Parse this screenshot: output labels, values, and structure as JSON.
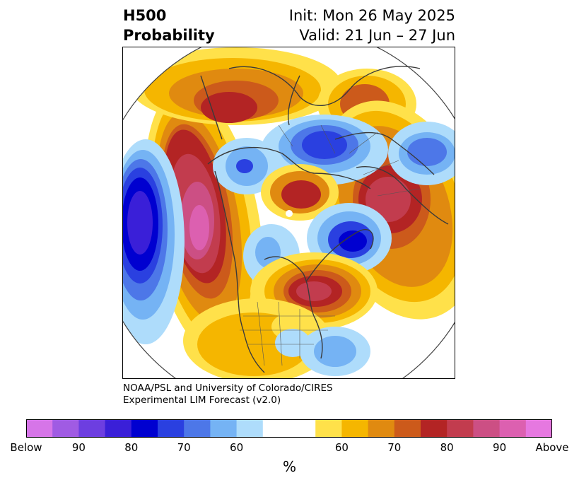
{
  "header": {
    "variable": "H500",
    "product": "Probability",
    "init": "Init: Mon 26 May 2025",
    "valid": "Valid: 21 Jun – 27 Jun"
  },
  "credit": {
    "line1": "NOAA/PSL and University of Colorado/CIRES",
    "line2": "Experimental LIM Forecast (v2.0)"
  },
  "colorbar": {
    "unit": "%",
    "colors": [
      "#d675e8",
      "#a05be3",
      "#6d3ee0",
      "#3a1fd8",
      "#0000d0",
      "#2a40e0",
      "#4d77e8",
      "#75b3f4",
      "#aedcfb",
      "#ffffff",
      "#ffffff",
      "#ffe14a",
      "#f5b600",
      "#e08a10",
      "#cc5a1b",
      "#b32424",
      "#c23c4e",
      "#cc4f84",
      "#dc60b0",
      "#e678e0"
    ],
    "tick_labels": [
      "Below",
      "90",
      "80",
      "70",
      "60",
      "60",
      "70",
      "80",
      "90",
      "Above"
    ]
  }
}
